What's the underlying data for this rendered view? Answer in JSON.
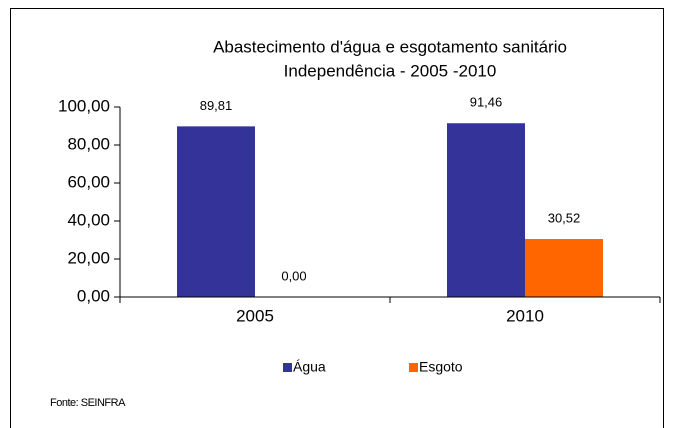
{
  "chart_data": {
    "type": "bar",
    "title": [
      "Abastecimento d'água e esgotamento sanitário",
      "Independência - 2005 -2010"
    ],
    "categories": [
      "2005",
      "2010"
    ],
    "series": [
      {
        "name": "Água",
        "color": "#333399",
        "values": [
          89.81,
          91.46
        ],
        "value_labels": [
          "89,81",
          "91,46"
        ]
      },
      {
        "name": "Esgoto",
        "color": "#ff6600",
        "values": [
          0,
          30.52
        ],
        "value_labels": [
          "0,00",
          "30,52"
        ]
      }
    ],
    "ylim": [
      0,
      100
    ],
    "yticks": [
      {
        "value": 0,
        "label": "0,00"
      },
      {
        "value": 20,
        "label": "20,00"
      },
      {
        "value": 40,
        "label": "40,00"
      },
      {
        "value": 60,
        "label": "60,00"
      },
      {
        "value": 80,
        "label": "80,00"
      },
      {
        "value": 100,
        "label": "100,00"
      }
    ],
    "legend": "bottom",
    "source": "Fonte: SEINFRA"
  }
}
